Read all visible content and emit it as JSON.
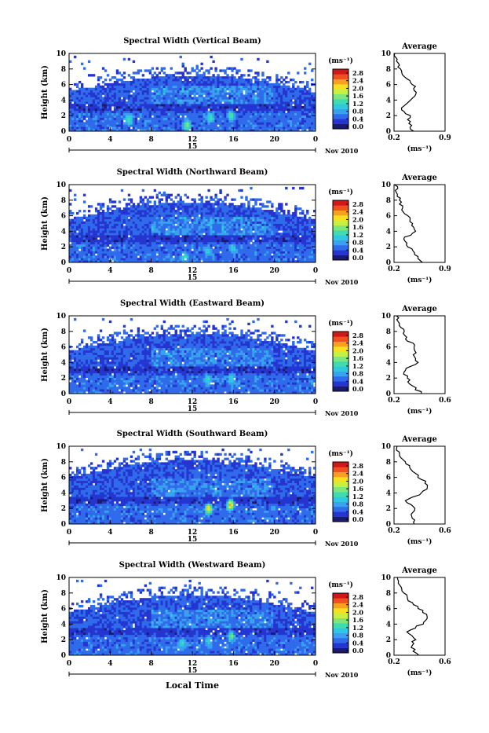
{
  "figure": {
    "xaxis_label": "Local Time",
    "date_center_label": "15",
    "date_right_label": "Nov 2010",
    "colorbar_unit": "(ms⁻¹)",
    "colorbar_ticks": [
      "2.8",
      "2.4",
      "2.0",
      "1.6",
      "1.2",
      "0.8",
      "0.4",
      "0.0"
    ],
    "x_ticks": [
      "0",
      "4",
      "8",
      "12",
      "16",
      "20",
      "0"
    ],
    "y_ticks": [
      "10",
      "8",
      "6",
      "4",
      "2",
      "0"
    ],
    "y_label": "Height (km)",
    "avg_title": "Average",
    "avg_unit": "(ms⁻¹)",
    "avg_y_ticks": [
      "10",
      "8",
      "6",
      "4",
      "2",
      "0"
    ]
  },
  "chart_data": [
    {
      "type": "heatmap",
      "title": "Spectral Width (Vertical Beam)",
      "xlabel": "Local Time",
      "ylabel": "Height (km)",
      "xlim": [
        0,
        24
      ],
      "ylim": [
        0,
        10
      ],
      "zlim": [
        0.0,
        3.0
      ],
      "unit": "ms-1",
      "echo_top_km": 6.5,
      "hot_spots": [
        {
          "t": 5.8,
          "h": 1.5,
          "v": 1.6
        },
        {
          "t": 11.5,
          "h": 0.8,
          "v": 1.8
        },
        {
          "t": 13.8,
          "h": 1.8,
          "v": 1.5
        },
        {
          "t": 15.8,
          "h": 2.0,
          "v": 1.6
        }
      ],
      "average": {
        "xticks": [
          "0.2",
          "0.9"
        ],
        "xlim": [
          0.2,
          0.9
        ],
        "height": [
          0,
          1,
          2,
          3,
          4,
          5,
          6,
          7,
          8,
          9,
          10
        ],
        "value": [
          0.45,
          0.42,
          0.4,
          0.3,
          0.45,
          0.5,
          0.47,
          0.35,
          0.28,
          0.22,
          0.22
        ]
      }
    },
    {
      "type": "heatmap",
      "title": "Spectral Width (Northward Beam)",
      "xlabel": "Local Time",
      "ylabel": "Height (km)",
      "xlim": [
        0,
        24
      ],
      "ylim": [
        0,
        10
      ],
      "zlim": [
        0.0,
        3.0
      ],
      "unit": "ms-1",
      "echo_top_km": 7.0,
      "hot_spots": [
        {
          "t": 11.3,
          "h": 0.7,
          "v": 1.4
        },
        {
          "t": 13.5,
          "h": 1.5,
          "v": 1.2
        },
        {
          "t": 16.0,
          "h": 1.8,
          "v": 1.2
        }
      ],
      "average": {
        "xticks": [
          "0.2",
          "0.9"
        ],
        "xlim": [
          0.2,
          0.9
        ],
        "height": [
          0,
          1,
          2,
          3,
          4,
          5,
          6,
          7,
          8,
          9,
          10
        ],
        "value": [
          0.6,
          0.48,
          0.4,
          0.32,
          0.5,
          0.45,
          0.38,
          0.3,
          0.28,
          0.24,
          0.22
        ]
      }
    },
    {
      "type": "heatmap",
      "title": "Spectral Width (Eastward Beam)",
      "xlabel": "Local Time",
      "ylabel": "Height (km)",
      "xlim": [
        0,
        24
      ],
      "ylim": [
        0,
        10
      ],
      "zlim": [
        0.0,
        3.0
      ],
      "unit": "ms-1",
      "echo_top_km": 7.0,
      "hot_spots": [
        {
          "t": 13.5,
          "h": 1.8,
          "v": 1.4
        },
        {
          "t": 15.8,
          "h": 2.0,
          "v": 1.4
        }
      ],
      "average": {
        "xticks": [
          "0.2",
          "0.6"
        ],
        "xlim": [
          0.2,
          0.6
        ],
        "height": [
          0,
          1,
          2,
          3,
          4,
          5,
          6,
          7,
          8,
          9,
          10
        ],
        "value": [
          0.42,
          0.34,
          0.3,
          0.28,
          0.38,
          0.36,
          0.37,
          0.3,
          0.27,
          0.24,
          0.22
        ]
      }
    },
    {
      "type": "heatmap",
      "title": "Spectral Width (Southward Beam)",
      "xlabel": "Local Time",
      "ylabel": "Height (km)",
      "xlim": [
        0,
        24
      ],
      "ylim": [
        0,
        10
      ],
      "zlim": [
        0.0,
        3.0
      ],
      "unit": "ms-1",
      "echo_top_km": 7.5,
      "hot_spots": [
        {
          "t": 13.6,
          "h": 2.0,
          "v": 2.4
        },
        {
          "t": 15.7,
          "h": 2.5,
          "v": 2.6
        }
      ],
      "average": {
        "xticks": [
          "0.2",
          "0.6"
        ],
        "xlim": [
          0.2,
          0.6
        ],
        "height": [
          0,
          1,
          2,
          3,
          4,
          5,
          6,
          7,
          8,
          9,
          10
        ],
        "value": [
          0.36,
          0.34,
          0.36,
          0.3,
          0.42,
          0.47,
          0.4,
          0.34,
          0.28,
          0.24,
          0.22
        ]
      }
    },
    {
      "type": "heatmap",
      "title": "Spectral Width (Westward Beam)",
      "xlabel": "Local Time",
      "ylabel": "Height (km)",
      "xlim": [
        0,
        24
      ],
      "ylim": [
        0,
        10
      ],
      "zlim": [
        0.0,
        3.0
      ],
      "unit": "ms-1",
      "echo_top_km": 7.0,
      "hot_spots": [
        {
          "t": 11.0,
          "h": 1.5,
          "v": 1.4
        },
        {
          "t": 13.6,
          "h": 1.8,
          "v": 1.3
        },
        {
          "t": 15.8,
          "h": 2.5,
          "v": 1.8
        }
      ],
      "average": {
        "xticks": [
          "0.2",
          "0.6"
        ],
        "xlim": [
          0.2,
          0.6
        ],
        "height": [
          0,
          1,
          2,
          3,
          4,
          5,
          6,
          7,
          8,
          9,
          10
        ],
        "value": [
          0.38,
          0.34,
          0.36,
          0.3,
          0.42,
          0.46,
          0.4,
          0.32,
          0.28,
          0.24,
          0.22
        ]
      }
    }
  ],
  "colors": {
    "scale": [
      "#1a1a6e",
      "#2535d0",
      "#2f6bea",
      "#3aa0f0",
      "#30c8e0",
      "#40dcb0",
      "#7ee67a",
      "#c8f040",
      "#f8e020",
      "#f8a020",
      "#f05020",
      "#d01818"
    ],
    "axis": "#000000",
    "background": "#ffffff"
  }
}
